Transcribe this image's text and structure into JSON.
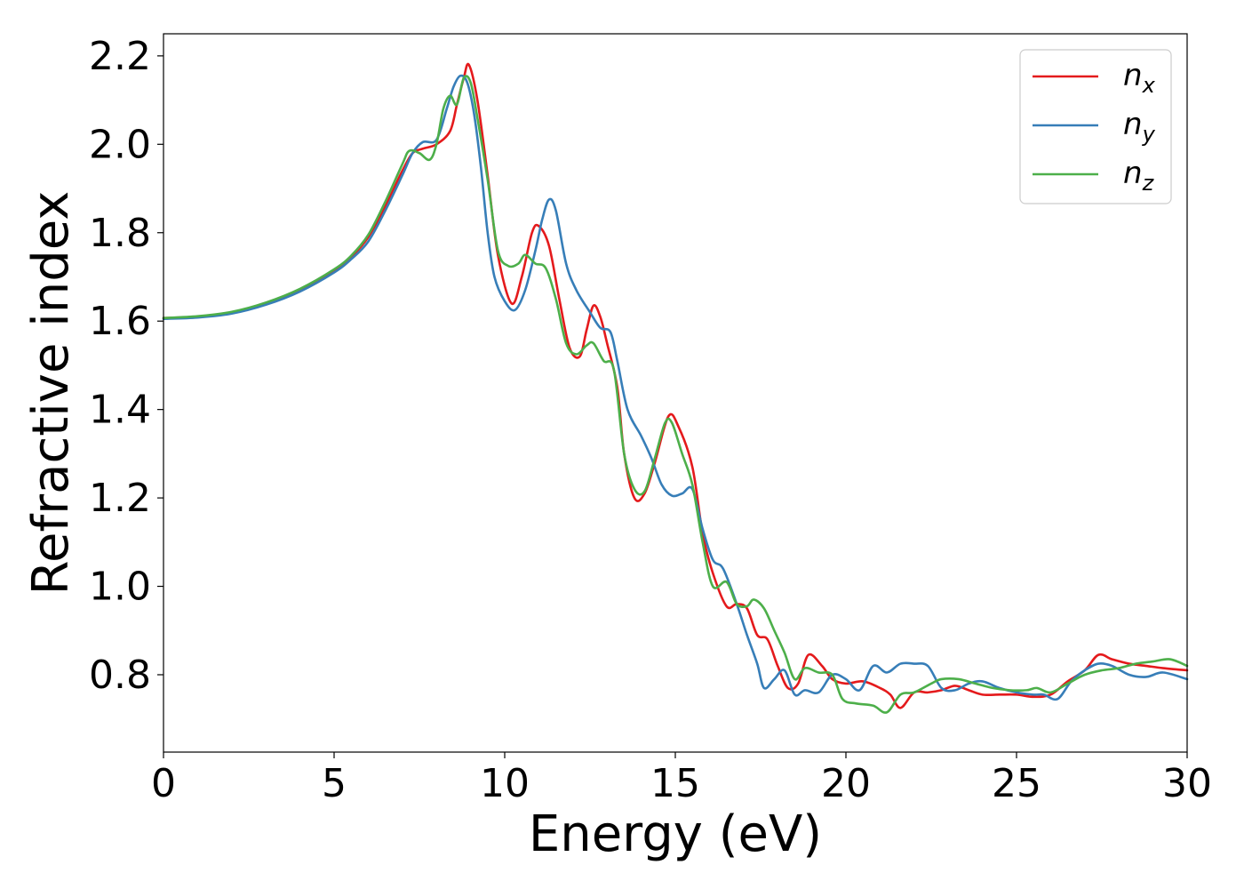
{
  "chart_data": {
    "type": "line",
    "title": "",
    "xlabel": "Energy (eV)",
    "ylabel": "Refractive index",
    "xlim": [
      0,
      30
    ],
    "ylim": [
      0.625,
      2.25
    ],
    "xticks": [
      0,
      5,
      10,
      15,
      20,
      25,
      30
    ],
    "yticks": [
      0.8,
      1.0,
      1.2,
      1.4,
      1.6,
      1.8,
      2.0,
      2.2
    ],
    "grid": false,
    "legend_position": "top-right",
    "series": [
      {
        "name": "n",
        "subscript": "x",
        "color": "#e41a1c",
        "points": [
          [
            0,
            1.607
          ],
          [
            1,
            1.61
          ],
          [
            2,
            1.62
          ],
          [
            3,
            1.64
          ],
          [
            4,
            1.67
          ],
          [
            5,
            1.715
          ],
          [
            5.5,
            1.745
          ],
          [
            6,
            1.79
          ],
          [
            6.5,
            1.86
          ],
          [
            7,
            1.94
          ],
          [
            7.3,
            1.98
          ],
          [
            7.6,
            1.99
          ],
          [
            8,
            2.0
          ],
          [
            8.4,
            2.03
          ],
          [
            8.6,
            2.09
          ],
          [
            8.8,
            2.15
          ],
          [
            8.95,
            2.18
          ],
          [
            9.2,
            2.1
          ],
          [
            9.5,
            1.93
          ],
          [
            9.8,
            1.75
          ],
          [
            10.2,
            1.64
          ],
          [
            10.5,
            1.7
          ],
          [
            10.8,
            1.8
          ],
          [
            11.0,
            1.815
          ],
          [
            11.3,
            1.77
          ],
          [
            11.6,
            1.65
          ],
          [
            11.9,
            1.54
          ],
          [
            12.2,
            1.52
          ],
          [
            12.4,
            1.58
          ],
          [
            12.6,
            1.635
          ],
          [
            12.8,
            1.61
          ],
          [
            13.0,
            1.55
          ],
          [
            13.3,
            1.45
          ],
          [
            13.5,
            1.3
          ],
          [
            13.8,
            1.2
          ],
          [
            14.1,
            1.21
          ],
          [
            14.4,
            1.28
          ],
          [
            14.8,
            1.385
          ],
          [
            15.1,
            1.36
          ],
          [
            15.5,
            1.27
          ],
          [
            15.8,
            1.12
          ],
          [
            16.1,
            1.03
          ],
          [
            16.5,
            0.955
          ],
          [
            16.8,
            0.96
          ],
          [
            17.1,
            0.95
          ],
          [
            17.4,
            0.89
          ],
          [
            17.7,
            0.88
          ],
          [
            18.0,
            0.82
          ],
          [
            18.3,
            0.77
          ],
          [
            18.6,
            0.78
          ],
          [
            18.9,
            0.845
          ],
          [
            19.3,
            0.82
          ],
          [
            19.6,
            0.79
          ],
          [
            20.0,
            0.78
          ],
          [
            20.5,
            0.785
          ],
          [
            21.0,
            0.77
          ],
          [
            21.3,
            0.755
          ],
          [
            21.6,
            0.725
          ],
          [
            22.0,
            0.76
          ],
          [
            22.4,
            0.76
          ],
          [
            22.8,
            0.765
          ],
          [
            23.2,
            0.775
          ],
          [
            23.6,
            0.765
          ],
          [
            24.0,
            0.755
          ],
          [
            24.5,
            0.755
          ],
          [
            25.0,
            0.755
          ],
          [
            25.5,
            0.75
          ],
          [
            26.0,
            0.755
          ],
          [
            26.5,
            0.785
          ],
          [
            27.0,
            0.81
          ],
          [
            27.4,
            0.845
          ],
          [
            27.8,
            0.835
          ],
          [
            28.3,
            0.825
          ],
          [
            28.8,
            0.82
          ],
          [
            29.3,
            0.815
          ],
          [
            30.0,
            0.81
          ]
        ]
      },
      {
        "name": "n",
        "subscript": "y",
        "color": "#377eb8",
        "points": [
          [
            0,
            1.605
          ],
          [
            1,
            1.608
          ],
          [
            2,
            1.617
          ],
          [
            3,
            1.637
          ],
          [
            4,
            1.667
          ],
          [
            5,
            1.71
          ],
          [
            5.5,
            1.74
          ],
          [
            6,
            1.78
          ],
          [
            6.5,
            1.85
          ],
          [
            7,
            1.93
          ],
          [
            7.3,
            1.98
          ],
          [
            7.6,
            2.005
          ],
          [
            8,
            2.01
          ],
          [
            8.3,
            2.08
          ],
          [
            8.5,
            2.13
          ],
          [
            8.7,
            2.155
          ],
          [
            8.9,
            2.14
          ],
          [
            9.1,
            2.07
          ],
          [
            9.3,
            1.95
          ],
          [
            9.5,
            1.8
          ],
          [
            9.7,
            1.7
          ],
          [
            10.0,
            1.645
          ],
          [
            10.3,
            1.625
          ],
          [
            10.6,
            1.67
          ],
          [
            10.9,
            1.76
          ],
          [
            11.1,
            1.83
          ],
          [
            11.3,
            1.875
          ],
          [
            11.5,
            1.85
          ],
          [
            11.8,
            1.73
          ],
          [
            12.1,
            1.67
          ],
          [
            12.5,
            1.62
          ],
          [
            12.8,
            1.585
          ],
          [
            13.1,
            1.575
          ],
          [
            13.3,
            1.51
          ],
          [
            13.6,
            1.4
          ],
          [
            14.0,
            1.34
          ],
          [
            14.3,
            1.29
          ],
          [
            14.6,
            1.23
          ],
          [
            14.9,
            1.205
          ],
          [
            15.2,
            1.21
          ],
          [
            15.5,
            1.22
          ],
          [
            15.8,
            1.13
          ],
          [
            16.1,
            1.06
          ],
          [
            16.4,
            1.04
          ],
          [
            16.8,
            0.96
          ],
          [
            17.1,
            0.89
          ],
          [
            17.4,
            0.825
          ],
          [
            17.6,
            0.77
          ],
          [
            17.9,
            0.79
          ],
          [
            18.2,
            0.81
          ],
          [
            18.5,
            0.755
          ],
          [
            18.8,
            0.765
          ],
          [
            19.2,
            0.76
          ],
          [
            19.6,
            0.8
          ],
          [
            20.0,
            0.79
          ],
          [
            20.4,
            0.765
          ],
          [
            20.8,
            0.82
          ],
          [
            21.2,
            0.805
          ],
          [
            21.6,
            0.825
          ],
          [
            22.0,
            0.825
          ],
          [
            22.4,
            0.82
          ],
          [
            22.8,
            0.77
          ],
          [
            23.2,
            0.765
          ],
          [
            23.6,
            0.78
          ],
          [
            24.0,
            0.785
          ],
          [
            24.5,
            0.77
          ],
          [
            25.0,
            0.76
          ],
          [
            25.5,
            0.755
          ],
          [
            25.8,
            0.755
          ],
          [
            26.2,
            0.745
          ],
          [
            26.6,
            0.785
          ],
          [
            27.0,
            0.81
          ],
          [
            27.4,
            0.825
          ],
          [
            27.8,
            0.82
          ],
          [
            28.3,
            0.8
          ],
          [
            28.8,
            0.795
          ],
          [
            29.3,
            0.805
          ],
          [
            30.0,
            0.79
          ]
        ]
      },
      {
        "name": "n",
        "subscript": "z",
        "color": "#4daf4a",
        "points": [
          [
            0,
            1.607
          ],
          [
            1,
            1.611
          ],
          [
            2,
            1.621
          ],
          [
            3,
            1.642
          ],
          [
            4,
            1.673
          ],
          [
            5,
            1.717
          ],
          [
            5.5,
            1.748
          ],
          [
            6,
            1.795
          ],
          [
            6.5,
            1.87
          ],
          [
            7,
            1.955
          ],
          [
            7.2,
            1.985
          ],
          [
            7.5,
            1.98
          ],
          [
            7.8,
            1.965
          ],
          [
            8.0,
            2.0
          ],
          [
            8.2,
            2.08
          ],
          [
            8.4,
            2.11
          ],
          [
            8.6,
            2.09
          ],
          [
            8.8,
            2.15
          ],
          [
            9.0,
            2.14
          ],
          [
            9.2,
            2.06
          ],
          [
            9.5,
            1.92
          ],
          [
            9.8,
            1.76
          ],
          [
            10.1,
            1.725
          ],
          [
            10.4,
            1.73
          ],
          [
            10.6,
            1.75
          ],
          [
            10.9,
            1.73
          ],
          [
            11.2,
            1.72
          ],
          [
            11.5,
            1.65
          ],
          [
            11.8,
            1.55
          ],
          [
            12.1,
            1.525
          ],
          [
            12.4,
            1.545
          ],
          [
            12.6,
            1.55
          ],
          [
            12.9,
            1.51
          ],
          [
            13.2,
            1.49
          ],
          [
            13.5,
            1.3
          ],
          [
            13.8,
            1.22
          ],
          [
            14.1,
            1.215
          ],
          [
            14.4,
            1.29
          ],
          [
            14.7,
            1.37
          ],
          [
            14.9,
            1.37
          ],
          [
            15.2,
            1.3
          ],
          [
            15.5,
            1.23
          ],
          [
            15.8,
            1.1
          ],
          [
            16.1,
            1.0
          ],
          [
            16.5,
            1.01
          ],
          [
            16.8,
            0.96
          ],
          [
            17.1,
            0.955
          ],
          [
            17.3,
            0.97
          ],
          [
            17.6,
            0.95
          ],
          [
            17.9,
            0.9
          ],
          [
            18.2,
            0.85
          ],
          [
            18.5,
            0.79
          ],
          [
            18.8,
            0.815
          ],
          [
            19.2,
            0.805
          ],
          [
            19.6,
            0.8
          ],
          [
            19.9,
            0.745
          ],
          [
            20.3,
            0.735
          ],
          [
            20.8,
            0.73
          ],
          [
            21.2,
            0.715
          ],
          [
            21.6,
            0.755
          ],
          [
            22.0,
            0.76
          ],
          [
            22.5,
            0.78
          ],
          [
            22.8,
            0.79
          ],
          [
            23.3,
            0.79
          ],
          [
            23.8,
            0.78
          ],
          [
            24.3,
            0.77
          ],
          [
            24.8,
            0.765
          ],
          [
            25.3,
            0.765
          ],
          [
            25.6,
            0.77
          ],
          [
            26.0,
            0.76
          ],
          [
            26.5,
            0.78
          ],
          [
            27.0,
            0.8
          ],
          [
            27.5,
            0.81
          ],
          [
            28.0,
            0.815
          ],
          [
            28.5,
            0.825
          ],
          [
            29.0,
            0.83
          ],
          [
            29.5,
            0.835
          ],
          [
            30.0,
            0.82
          ]
        ]
      }
    ]
  }
}
